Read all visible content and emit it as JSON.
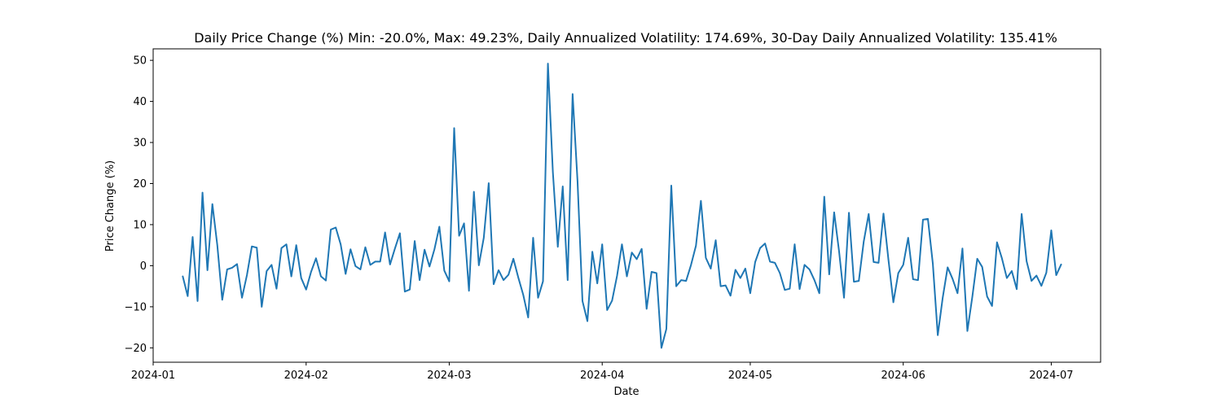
{
  "chart_data": {
    "type": "line",
    "title": "Daily Price Change (%) Min: -20.0%, Max: 49.23%, Daily Annualized Volatility: 174.69%, 30-Day Daily Annualized Volatility: 135.41%",
    "xlabel": "Date",
    "ylabel": "Price Change (%)",
    "ylim": [
      -23.5,
      52.8
    ],
    "xlim": [
      "2024-01-01",
      "2024-07-11"
    ],
    "x_ticks": [
      "2024-01",
      "2024-02",
      "2024-03",
      "2024-04",
      "2024-05",
      "2024-06",
      "2024-07"
    ],
    "x_tick_dates": [
      "2024-01-01",
      "2024-02-01",
      "2024-03-01",
      "2024-04-01",
      "2024-05-01",
      "2024-06-01",
      "2024-07-01"
    ],
    "y_ticks": [
      -20,
      -10,
      0,
      10,
      20,
      30,
      40,
      50
    ],
    "grid": false,
    "color": "#1f77b4",
    "start_date": "2024-01-07",
    "y": [
      -2.6,
      -7.4,
      7.0,
      -8.6,
      17.8,
      -1.1,
      15.0,
      5.0,
      -8.3,
      -0.9,
      -0.5,
      0.4,
      -7.8,
      -2.3,
      4.7,
      4.4,
      -10.0,
      -1.3,
      0.2,
      -5.6,
      4.3,
      5.2,
      -2.6,
      5.0,
      -3.0,
      -5.8,
      -1.5,
      1.8,
      -2.6,
      -3.6,
      8.8,
      9.3,
      5.2,
      -2.0,
      4.0,
      -0.1,
      -0.9,
      4.5,
      0.2,
      1.0,
      1.0,
      8.1,
      0.3,
      4.2,
      7.9,
      -6.3,
      -5.8,
      6.0,
      -3.5,
      3.9,
      -0.2,
      4.0,
      9.5,
      -1.2,
      -3.8,
      33.5,
      7.3,
      10.3,
      -6.1,
      18.0,
      0.1,
      6.8,
      20.1,
      -4.5,
      -1.1,
      -3.5,
      -2.2,
      1.7,
      -2.9,
      -7.1,
      -12.6,
      6.8,
      -7.8,
      -3.8,
      49.2,
      22.8,
      4.6,
      19.3,
      -3.5,
      41.8,
      20.5,
      -8.6,
      -13.5,
      3.4,
      -4.3,
      5.2,
      -10.8,
      -8.5,
      -2.5,
      5.2,
      -2.6,
      3.2,
      1.6,
      4.1,
      -10.5,
      -1.5,
      -1.8,
      -20.0,
      -15.4,
      19.5,
      -5.0,
      -3.5,
      -3.7,
      0.2,
      4.9,
      15.8,
      1.9,
      -0.7,
      6.2,
      -5.0,
      -4.8,
      -7.3,
      -1.0,
      -3.0,
      -0.7,
      -6.7,
      0.9,
      4.3,
      5.4,
      1.0,
      0.7,
      -1.8,
      -5.9,
      -5.6,
      5.2,
      -5.7,
      0.2,
      -0.9,
      -3.5,
      -6.7,
      16.8,
      -2.1,
      13.0,
      3.5,
      -7.8,
      12.9,
      -3.9,
      -3.7,
      5.9,
      12.6,
      0.9,
      0.7,
      12.7,
      1.5,
      -8.9,
      -1.8,
      0.2,
      6.8,
      -3.3,
      -3.5,
      11.2,
      11.4,
      0.5,
      -16.9,
      -7.8,
      -0.4,
      -3.2,
      -6.7,
      4.2,
      -15.9,
      -7.6,
      1.7,
      -0.3,
      -7.5,
      -9.8,
      5.7,
      1.8,
      -3.0,
      -1.3,
      -5.7,
      12.6,
      1.1,
      -3.7,
      -2.4,
      -4.9,
      -1.7,
      8.6,
      -2.3,
      0.3
    ]
  }
}
